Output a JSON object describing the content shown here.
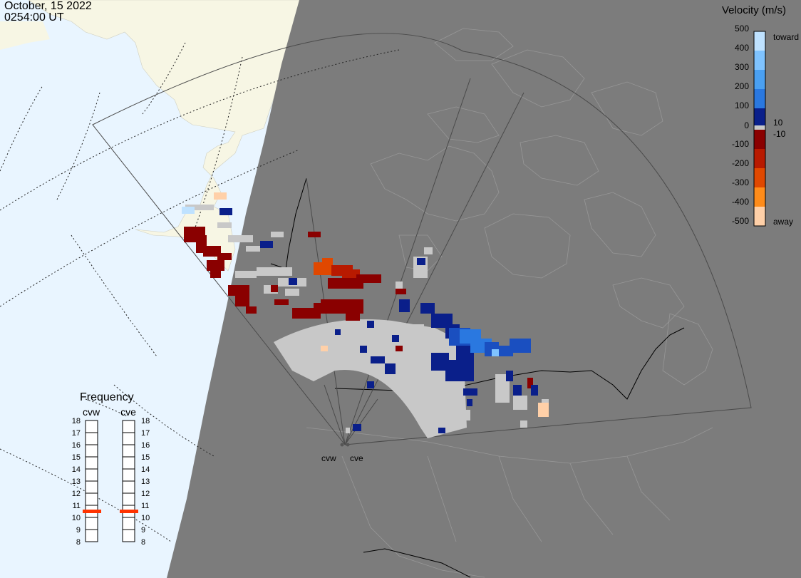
{
  "header": {
    "date": "October, 15 2022",
    "time": "0254:00 UT"
  },
  "legend": {
    "title": "Velocity (m/s)",
    "ticks": [
      "500",
      "400",
      "300",
      "200",
      "100",
      "0",
      "-100",
      "-200",
      "-300",
      "-400",
      "-500"
    ],
    "toward_label": "toward",
    "away_label": "away",
    "inner_positive": "10",
    "inner_negative": "-10",
    "colors": [
      "#bfe2ff",
      "#7fc3ff",
      "#4aa0f2",
      "#2a78e0",
      "#1a4fc0",
      "#0a1f8a",
      "#8a0000",
      "#b81a00",
      "#e04800",
      "#ff8c1a",
      "#ffd0a8"
    ]
  },
  "frequency": {
    "title": "Frequency",
    "radars": [
      {
        "name": "cvw",
        "selected": 11
      },
      {
        "name": "cve",
        "selected": 11
      }
    ],
    "scale": [
      "18",
      "17",
      "16",
      "15",
      "14",
      "13",
      "12",
      "11",
      "10",
      "9",
      "8"
    ],
    "marker_color": "#ff3300"
  },
  "sites": {
    "cvw": "cvw",
    "cve": "cve"
  },
  "colors": {
    "night": "#7c7c7c",
    "ocean": "#e9f5ff",
    "land_day": "#f7f6e4",
    "ground_scatter": "#c8c8c8"
  }
}
